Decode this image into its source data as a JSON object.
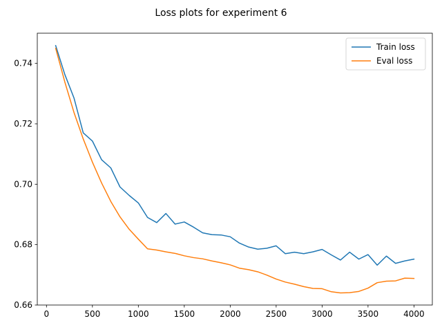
{
  "chart_data": {
    "type": "line",
    "title": "Loss plots for experiment 6",
    "xlabel": "",
    "ylabel": "",
    "xlim": [
      -100,
      4200
    ],
    "ylim": [
      0.66,
      0.75
    ],
    "x_ticks": [
      0,
      500,
      1000,
      1500,
      2000,
      2500,
      3000,
      3500,
      4000
    ],
    "x_tick_labels": [
      "0",
      "500",
      "1000",
      "1500",
      "2000",
      "2500",
      "3000",
      "3500",
      "4000"
    ],
    "y_ticks": [
      0.66,
      0.68,
      0.7,
      0.72,
      0.74
    ],
    "y_tick_labels": [
      "0.66",
      "0.68",
      "0.70",
      "0.72",
      "0.74"
    ],
    "grid": false,
    "legend_position": "top-right",
    "x": [
      100,
      200,
      300,
      400,
      500,
      600,
      700,
      800,
      900,
      1000,
      1100,
      1200,
      1300,
      1400,
      1500,
      1600,
      1700,
      1800,
      1900,
      2000,
      2100,
      2200,
      2300,
      2400,
      2500,
      2600,
      2700,
      2800,
      2900,
      3000,
      3100,
      3200,
      3300,
      3400,
      3500,
      3600,
      3700,
      3800,
      3900,
      4000
    ],
    "series": [
      {
        "name": "Train loss",
        "color": "#1f77b4",
        "values": [
          0.7459,
          0.7363,
          0.7285,
          0.717,
          0.7143,
          0.7081,
          0.7054,
          0.6991,
          0.6963,
          0.6938,
          0.689,
          0.6873,
          0.6903,
          0.6868,
          0.6875,
          0.6858,
          0.6839,
          0.6833,
          0.6832,
          0.6826,
          0.6805,
          0.6792,
          0.6785,
          0.6788,
          0.6796,
          0.677,
          0.6775,
          0.677,
          0.6776,
          0.6784,
          0.6766,
          0.6749,
          0.6775,
          0.6752,
          0.6767,
          0.6732,
          0.6762,
          0.6738,
          0.6746,
          0.6752
        ]
      },
      {
        "name": "Eval loss",
        "color": "#ff7f0e",
        "values": [
          0.745,
          0.7338,
          0.7237,
          0.715,
          0.7073,
          0.7004,
          0.6943,
          0.6892,
          0.6851,
          0.6818,
          0.6786,
          0.6782,
          0.6776,
          0.6771,
          0.6763,
          0.6757,
          0.6753,
          0.6746,
          0.674,
          0.6733,
          0.6722,
          0.6717,
          0.671,
          0.6699,
          0.6686,
          0.6676,
          0.6669,
          0.6661,
          0.6655,
          0.6654,
          0.6644,
          0.664,
          0.6641,
          0.6645,
          0.6656,
          0.6674,
          0.6679,
          0.668,
          0.6689,
          0.6688
        ]
      }
    ]
  }
}
